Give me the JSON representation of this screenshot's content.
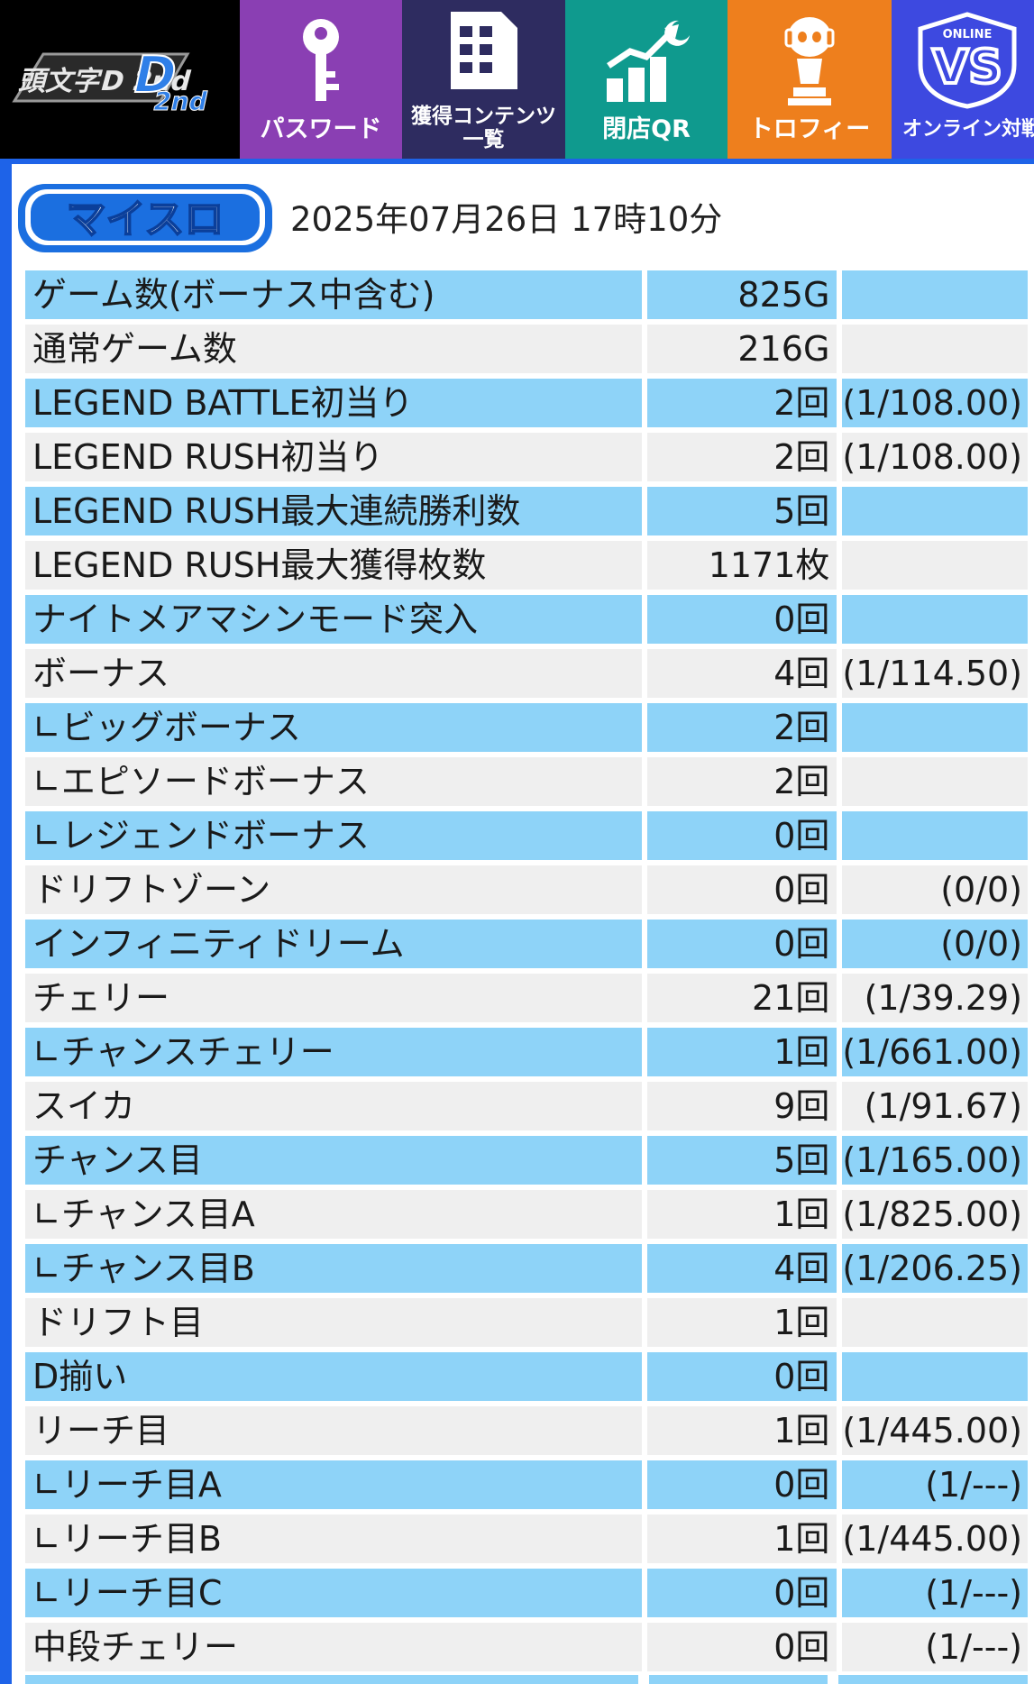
{
  "nav": {
    "logo_text": "頭文字D 2nd",
    "buttons": [
      {
        "label": "パスワード",
        "icon": "key-icon",
        "color": "#8a3fb3"
      },
      {
        "label1": "獲得コンテンツ",
        "label2": "一覧",
        "icon": "content-list-icon",
        "color": "#2e2c60"
      },
      {
        "label": "閉店QR",
        "icon": "chart-moon-icon",
        "color": "#0f9a8e"
      },
      {
        "label": "トロフィー",
        "icon": "trophy-figure-icon",
        "color": "#ee7f1d"
      },
      {
        "label": "オンライン対戦",
        "badge_top": "ONLINE",
        "badge_main": "VS",
        "icon": "online-vs-icon",
        "color": "#3d49e0"
      }
    ]
  },
  "brand": {
    "label": "マイスロ"
  },
  "datetime": "2025年07月26日 17時10分",
  "rows": [
    {
      "name": "ゲーム数(ボーナス中含む)",
      "value": "825G",
      "ratio": ""
    },
    {
      "name": "通常ゲーム数",
      "value": "216G",
      "ratio": ""
    },
    {
      "name": "LEGEND BATTLE初当り",
      "value": "2回",
      "ratio": "(1/108.00)"
    },
    {
      "name": "LEGEND RUSH初当り",
      "value": "2回",
      "ratio": "(1/108.00)"
    },
    {
      "name": "LEGEND RUSH最大連続勝利数",
      "value": "5回",
      "ratio": ""
    },
    {
      "name": "LEGEND RUSH最大獲得枚数",
      "value": "1171枚",
      "ratio": ""
    },
    {
      "name": "ナイトメアマシンモード突入",
      "value": "0回",
      "ratio": ""
    },
    {
      "name": "ボーナス",
      "value": "4回",
      "ratio": "(1/114.50)"
    },
    {
      "name": "∟ビッグボーナス",
      "value": "2回",
      "ratio": ""
    },
    {
      "name": "∟エピソードボーナス",
      "value": "2回",
      "ratio": ""
    },
    {
      "name": "∟レジェンドボーナス",
      "value": "0回",
      "ratio": ""
    },
    {
      "name": "ドリフトゾーン",
      "value": "0回",
      "ratio": "(0/0)"
    },
    {
      "name": "インフィニティドリーム",
      "value": "0回",
      "ratio": "(0/0)"
    },
    {
      "name": "チェリー",
      "value": "21回",
      "ratio": "(1/39.29)"
    },
    {
      "name": "∟チャンスチェリー",
      "value": "1回",
      "ratio": "(1/661.00)"
    },
    {
      "name": "スイカ",
      "value": "9回",
      "ratio": "(1/91.67)"
    },
    {
      "name": "チャンス目",
      "value": "5回",
      "ratio": "(1/165.00)"
    },
    {
      "name": "∟チャンス目A",
      "value": "1回",
      "ratio": "(1/825.00)"
    },
    {
      "name": "∟チャンス目B",
      "value": "4回",
      "ratio": "(1/206.25)"
    },
    {
      "name": "ドリフト目",
      "value": "1回",
      "ratio": ""
    },
    {
      "name": "D揃い",
      "value": "0回",
      "ratio": ""
    },
    {
      "name": "リーチ目",
      "value": "1回",
      "ratio": "(1/445.00)"
    },
    {
      "name": "∟リーチ目A",
      "value": "0回",
      "ratio": "(1/---)"
    },
    {
      "name": "∟リーチ目B",
      "value": "1回",
      "ratio": "(1/445.00)"
    },
    {
      "name": "∟リーチ目C",
      "value": "0回",
      "ratio": "(1/---)"
    },
    {
      "name": "中段チェリー",
      "value": "0回",
      "ratio": "(1/---)"
    }
  ],
  "colors": {
    "row_blue": "#8ed3f8",
    "row_gray": "#efefef",
    "frame": "#1e63e8"
  }
}
